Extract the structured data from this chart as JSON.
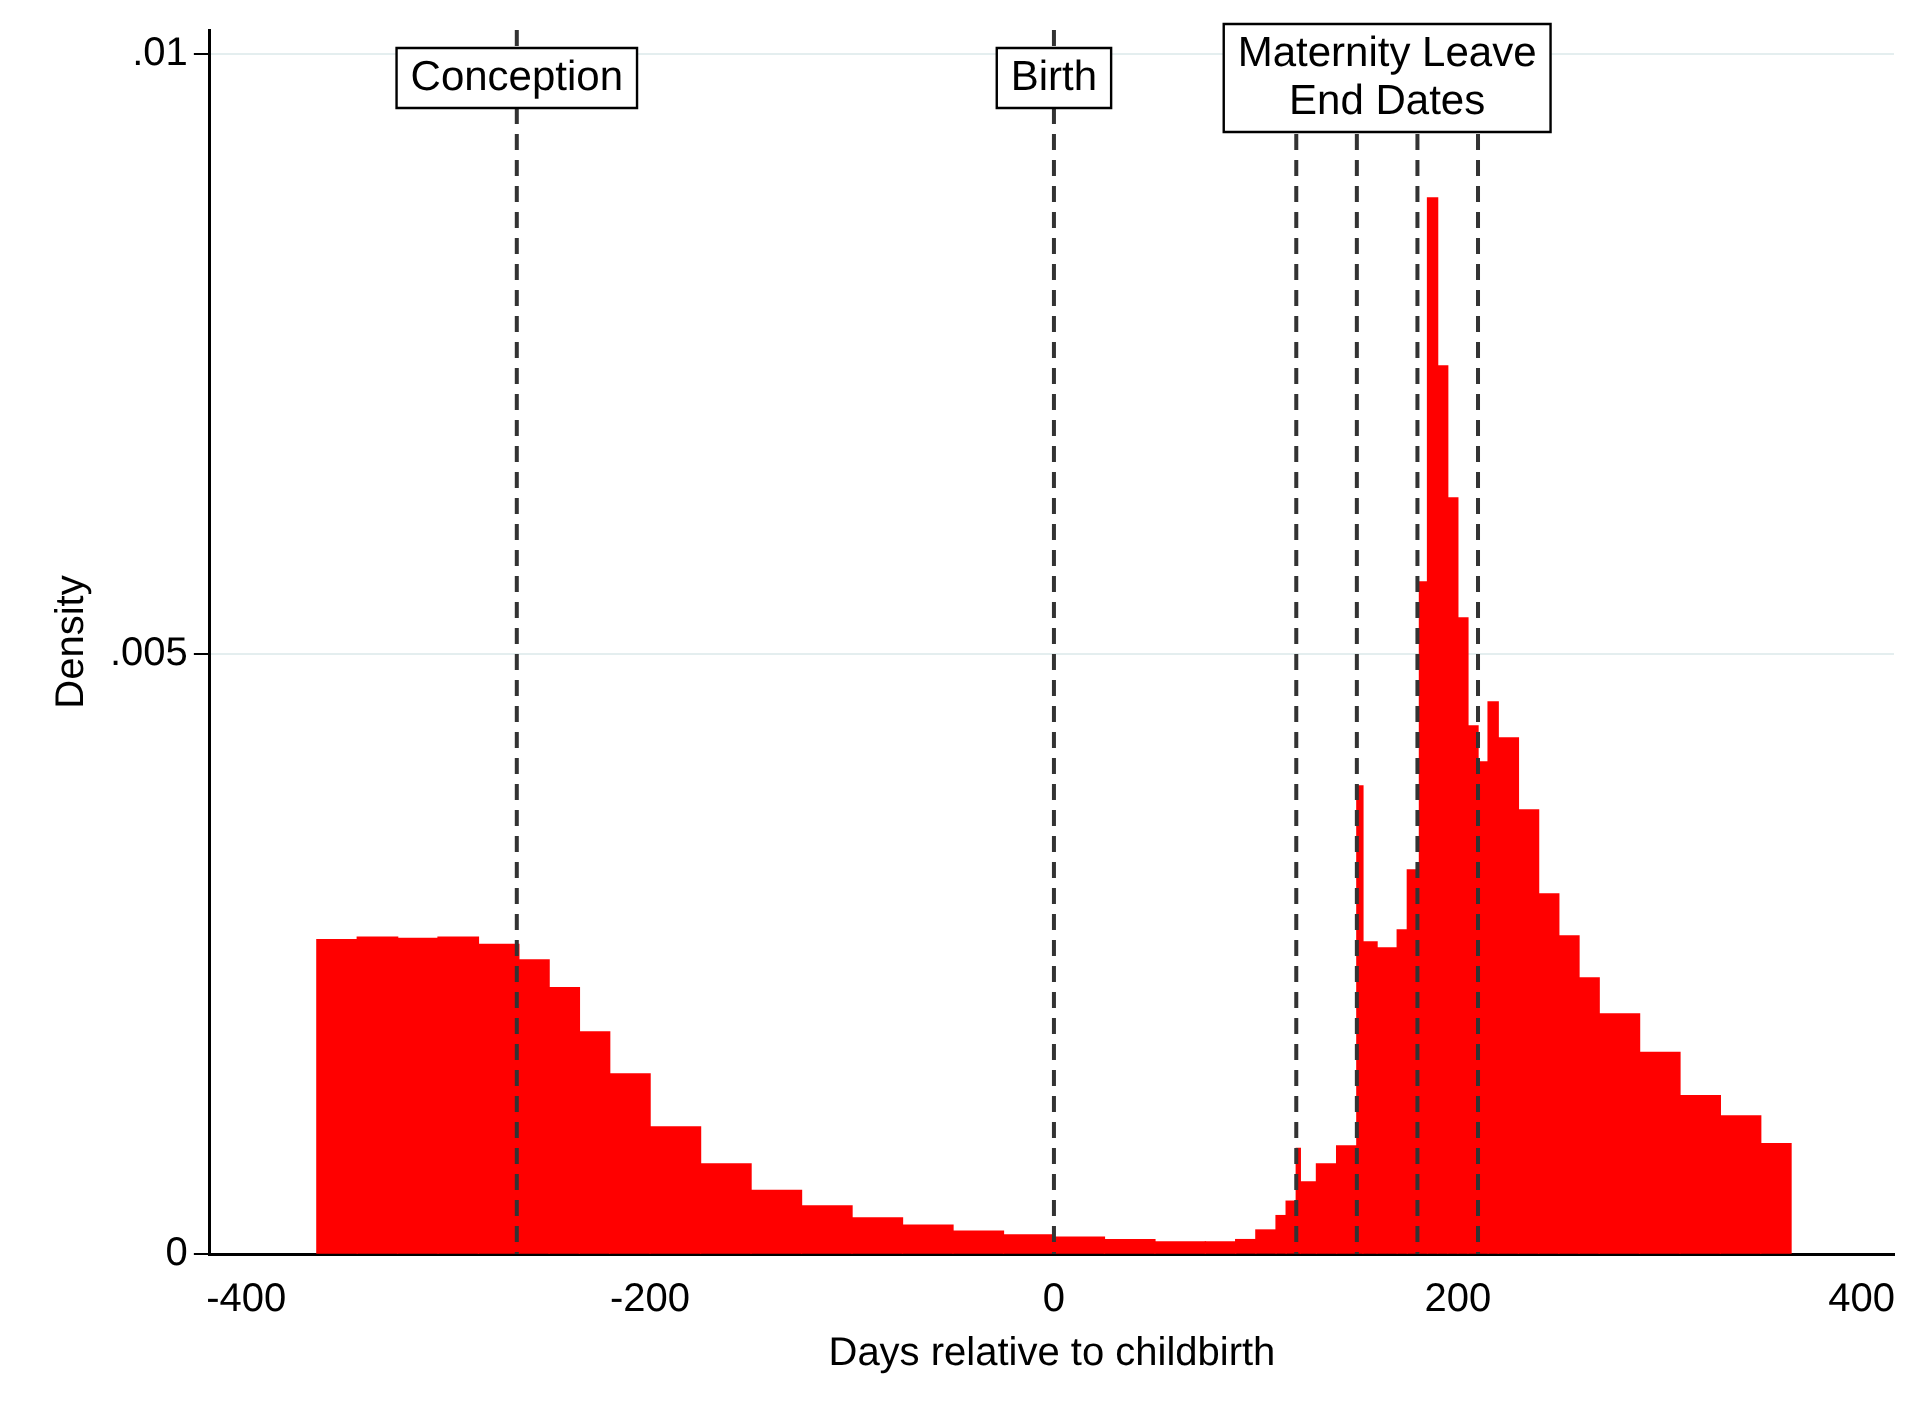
{
  "chart_data": {
    "type": "histogram",
    "xlabel": "Days relative to childbirth",
    "ylabel": "Density",
    "color": "#ff0000",
    "bins": [
      -365,
      -345,
      -325,
      -305,
      -285,
      -265,
      -250,
      -235,
      -220,
      -200,
      -175,
      -150,
      -125,
      -100,
      -75,
      -50,
      -25,
      0,
      25,
      50,
      75,
      90,
      100,
      110,
      115,
      120,
      122,
      130,
      140,
      150,
      153,
      160,
      170,
      175,
      181,
      185,
      190,
      195,
      200,
      205,
      210,
      215,
      220,
      230,
      240,
      250,
      260,
      270,
      290,
      310,
      330,
      350,
      365
    ],
    "values": [
      0.00262,
      0.00264,
      0.00263,
      0.00264,
      0.00258,
      0.00245,
      0.00222,
      0.00185,
      0.0015,
      0.00106,
      0.00075,
      0.00053,
      0.0004,
      0.0003,
      0.00024,
      0.00019,
      0.00016,
      0.00014,
      0.00012,
      0.0001,
      0.0001,
      0.00012,
      0.0002,
      0.00032,
      0.00044,
      0.00088,
      0.0006,
      0.00075,
      0.0009,
      0.0039,
      0.0026,
      0.00255,
      0.0027,
      0.0032,
      0.0056,
      0.0088,
      0.0074,
      0.0063,
      0.0053,
      0.0044,
      0.0041,
      0.0046,
      0.0043,
      0.0037,
      0.003,
      0.00265,
      0.0023,
      0.002,
      0.00168,
      0.00132,
      0.00115,
      0.00092
    ],
    "xlim": [
      -418,
      416
    ],
    "xticks": [
      -400,
      -200,
      0,
      200,
      400
    ],
    "ylim": [
      0,
      0.0102
    ],
    "yticks": [
      {
        "value": 0,
        "label": "0"
      },
      {
        "value": 0.005,
        "label": ".005"
      },
      {
        "value": 0.01,
        "label": ".01"
      }
    ],
    "grid": "y",
    "legend": false,
    "ref_lines": [
      {
        "axis": "x",
        "value": -266,
        "label": "Conception",
        "line_style": "dashed",
        "color": "#333333"
      },
      {
        "axis": "x",
        "value": 0,
        "label": "Birth",
        "line_style": "dashed",
        "color": "#333333"
      },
      {
        "axis": "x",
        "value": 120,
        "line_style": "dashed",
        "color": "#333333"
      },
      {
        "axis": "x",
        "value": 150,
        "line_style": "dashed",
        "color": "#333333"
      },
      {
        "axis": "x",
        "value": 180,
        "line_style": "dashed",
        "color": "#333333"
      },
      {
        "axis": "x",
        "value": 210,
        "line_style": "dashed",
        "color": "#333333"
      }
    ],
    "annotations": [
      "Maternity Leave End Dates"
    ]
  }
}
